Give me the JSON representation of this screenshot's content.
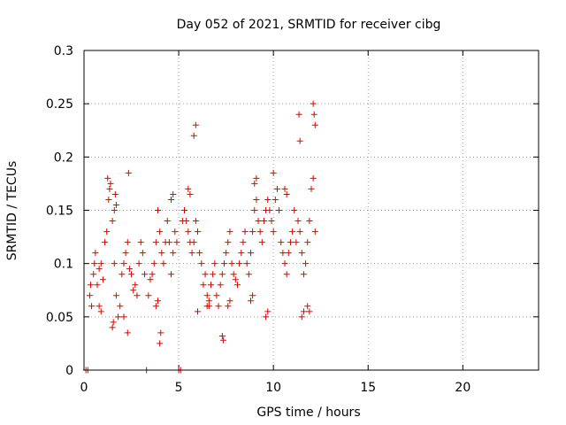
{
  "chart_data": {
    "type": "scatter",
    "title": "Day 052 of 2021, SRMTID for receiver cibg",
    "xlabel": "GPS time / hours",
    "ylabel": "SRMTID / TECUs",
    "xlim": [
      0,
      24
    ],
    "ylim": [
      0,
      0.3
    ],
    "x_ticks": [
      0,
      5,
      10,
      15,
      20
    ],
    "x_tick_labels": [
      "0",
      "5",
      "10",
      "15",
      "20"
    ],
    "y_ticks": [
      0,
      0.05,
      0.1,
      0.15,
      0.2,
      0.25,
      0.3
    ],
    "y_tick_labels": [
      "0",
      "0.05",
      "0.1",
      "0.15",
      "0.2",
      "0.25",
      "0.3"
    ],
    "grid": true,
    "legend": "none",
    "marker": "+",
    "color": "#e00000",
    "series": [
      {
        "x": [
          0.1,
          0.2,
          3.3,
          5.0,
          5.1,
          0.3,
          0.35,
          0.4,
          0.5,
          0.55,
          0.6,
          0.7,
          0.8,
          0.9,
          1.0,
          1.1,
          1.2,
          1.3,
          1.35,
          1.4,
          1.5,
          1.6,
          1.7,
          1.8,
          1.9,
          2.0,
          2.1,
          2.2,
          2.3,
          2.4,
          2.5,
          2.6,
          2.7,
          2.8,
          2.9,
          3.0,
          3.1,
          3.2,
          3.4,
          3.5,
          3.6,
          3.7,
          3.8,
          3.9,
          4.0,
          4.1,
          4.2,
          4.3,
          4.4,
          4.5,
          4.6,
          4.7,
          4.8,
          4.9,
          5.2,
          5.3,
          5.4,
          5.5,
          5.6,
          5.7,
          5.8,
          5.9,
          6.0,
          6.1,
          6.2,
          6.3,
          6.4,
          6.5,
          6.6,
          6.7,
          6.8,
          6.9,
          7.0,
          7.1,
          7.2,
          7.3,
          7.4,
          7.5,
          7.6,
          7.7,
          7.8,
          7.9,
          8.0,
          8.1,
          8.2,
          8.3,
          8.4,
          8.5,
          8.6,
          8.7,
          8.8,
          8.9,
          9.0,
          9.1,
          9.2,
          9.3,
          9.4,
          9.5,
          9.6,
          9.7,
          9.8,
          9.9,
          10.0,
          10.1,
          10.2,
          10.3,
          10.4,
          10.5,
          10.6,
          10.7,
          10.8,
          10.9,
          11.0,
          11.1,
          11.2,
          11.3,
          11.4,
          11.5,
          11.6,
          11.7,
          11.8,
          11.9,
          12.0,
          12.1,
          12.2,
          1.25,
          2.35,
          5.8,
          5.9,
          10.0,
          11.35,
          11.4,
          12.1,
          12.15,
          12.2,
          7.3,
          7.35,
          4.0,
          4.05,
          1.5,
          1.55,
          2.1,
          2.3,
          6.0,
          8.8,
          8.9,
          3.8,
          3.9,
          0.8,
          0.9,
          1.6,
          1.65,
          1.7,
          4.6,
          4.7,
          5.5,
          5.6,
          6.5,
          6.6,
          7.6,
          7.7,
          9.0,
          9.1,
          9.6,
          9.7,
          10.6,
          10.7,
          11.5,
          11.6,
          11.8,
          11.9
        ],
        "y": [
          0.0,
          0.0,
          0.0,
          0.0,
          0.0,
          0.07,
          0.08,
          0.06,
          0.09,
          0.1,
          0.11,
          0.08,
          0.095,
          0.1,
          0.085,
          0.12,
          0.13,
          0.16,
          0.17,
          0.175,
          0.14,
          0.1,
          0.07,
          0.05,
          0.06,
          0.09,
          0.1,
          0.11,
          0.12,
          0.095,
          0.09,
          0.075,
          0.08,
          0.07,
          0.1,
          0.12,
          0.11,
          0.09,
          0.07,
          0.085,
          0.09,
          0.1,
          0.12,
          0.15,
          0.13,
          0.11,
          0.1,
          0.12,
          0.14,
          0.12,
          0.09,
          0.11,
          0.13,
          0.12,
          0.14,
          0.15,
          0.14,
          0.13,
          0.12,
          0.11,
          0.12,
          0.14,
          0.13,
          0.11,
          0.1,
          0.08,
          0.09,
          0.07,
          0.06,
          0.08,
          0.09,
          0.1,
          0.07,
          0.06,
          0.08,
          0.09,
          0.1,
          0.11,
          0.12,
          0.13,
          0.1,
          0.09,
          0.085,
          0.08,
          0.1,
          0.11,
          0.12,
          0.13,
          0.1,
          0.09,
          0.11,
          0.13,
          0.15,
          0.16,
          0.14,
          0.13,
          0.12,
          0.14,
          0.15,
          0.16,
          0.15,
          0.14,
          0.13,
          0.16,
          0.17,
          0.15,
          0.12,
          0.11,
          0.1,
          0.09,
          0.11,
          0.12,
          0.13,
          0.15,
          0.12,
          0.14,
          0.13,
          0.11,
          0.09,
          0.1,
          0.12,
          0.14,
          0.17,
          0.18,
          0.13,
          0.18,
          0.185,
          0.22,
          0.23,
          0.185,
          0.24,
          0.215,
          0.25,
          0.24,
          0.23,
          0.032,
          0.028,
          0.025,
          0.035,
          0.04,
          0.045,
          0.05,
          0.035,
          0.055,
          0.065,
          0.07,
          0.06,
          0.065,
          0.06,
          0.055,
          0.15,
          0.165,
          0.155,
          0.16,
          0.165,
          0.17,
          0.165,
          0.06,
          0.065,
          0.06,
          0.065,
          0.175,
          0.18,
          0.05,
          0.055,
          0.17,
          0.165,
          0.05,
          0.055,
          0.06,
          0.055
        ]
      }
    ]
  }
}
